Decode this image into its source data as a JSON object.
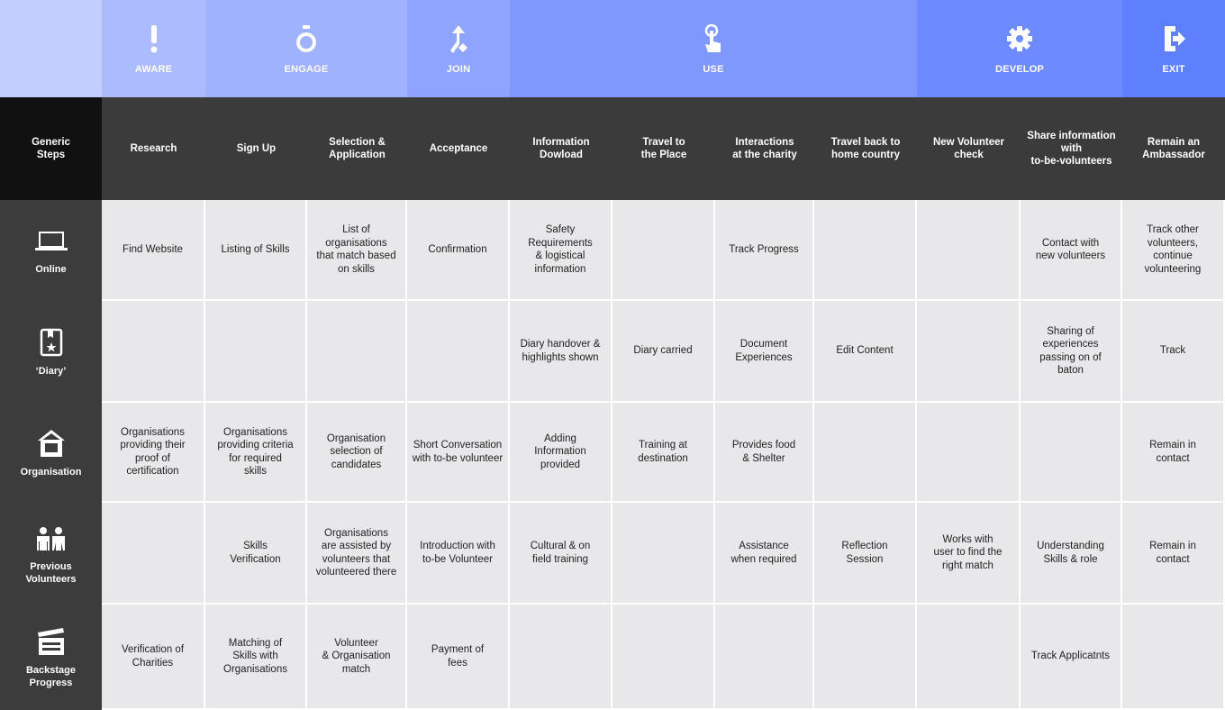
{
  "phases": [
    {
      "label": "",
      "icon": "none",
      "color": "#c3ceff"
    },
    {
      "label": "AWARE",
      "icon": "exclamation-icon",
      "color": "#abbcfe"
    },
    {
      "label": "ENGAGE",
      "icon": "ring-icon",
      "color": "#9fb2fe"
    },
    {
      "label": "JOIN",
      "icon": "merge-arrow-icon",
      "color": "#8ea4fe"
    },
    {
      "label": "USE",
      "icon": "pointer-hand-icon",
      "color": "#7f98fe"
    },
    {
      "label": "DEVELOP",
      "icon": "gear-icon",
      "color": "#6d8bfe"
    },
    {
      "label": "EXIT",
      "icon": "exit-icon",
      "color": "#5f80fe"
    }
  ],
  "generic_label": "Generic\nSteps",
  "steps": [
    "Research",
    "Sign Up",
    "Selection &\nApplication",
    "Acceptance",
    "Information\nDowload",
    "Travel to\nthe Place",
    "Interactions\nat the charity",
    "Travel back to\nhome country",
    "New Volunteer\ncheck",
    "Share information\nwith\nto-be-volunteers",
    "Remain an\nAmbassador"
  ],
  "rows": [
    {
      "label": "Online",
      "icon": "laptop-icon",
      "cells": [
        "Find Website",
        "Listing of Skills",
        "List of\norganisations\nthat match based\non skills",
        "Confirmation",
        "Safety\nRequirements\n& logistical\ninformation",
        "",
        "Track Progress",
        "",
        "",
        "Contact with\nnew volunteers",
        "Track other\nvolunteers,\ncontinue\nvolunteering"
      ]
    },
    {
      "label": "‘Diary’",
      "icon": "diary-icon",
      "cells": [
        "",
        "",
        "",
        "",
        "Diary handover &\nhighlights shown",
        "Diary carried",
        "Document\nExperiences",
        "Edit Content",
        "",
        "Sharing of\nexperiences\npassing on of\nbaton",
        "Track"
      ]
    },
    {
      "label": "Organisation",
      "icon": "house-icon",
      "cells": [
        "Organisations\nproviding their\nproof of\ncertification",
        "Organisations\nproviding criteria\nfor required\nskills",
        "Organisation\nselection of\ncandidates",
        "Short Conversation\nwith to-be volunteer",
        "Adding\nInformation\nprovided",
        "Training at\ndestination",
        "Provides food\n& Shelter",
        "",
        "",
        "",
        "Remain in\ncontact"
      ]
    },
    {
      "label": "Previous\nVolunteers",
      "icon": "people-icon",
      "cells": [
        "",
        "Skills\nVerification",
        "Organisations\nare assisted by\nvolunteers that\nvolunteered there",
        "Introduction with\nto-be Volunteer",
        "Cultural & on\nfield training",
        "",
        "Assistance\nwhen required",
        "Reflection\nSession",
        "Works with\nuser to find the\nright match",
        "Understanding\nSkills & role",
        "Remain in\ncontact"
      ]
    },
    {
      "label": "Backstage\nProgress",
      "icon": "clapperboard-icon",
      "cells": [
        "Verification of\nCharities",
        "Matching of\nSkills with\nOrganisations",
        "Volunteer\n& Organisation\nmatch",
        "Payment of\nfees",
        "",
        "",
        "",
        "",
        "",
        "Track Applicatnts",
        ""
      ]
    }
  ]
}
